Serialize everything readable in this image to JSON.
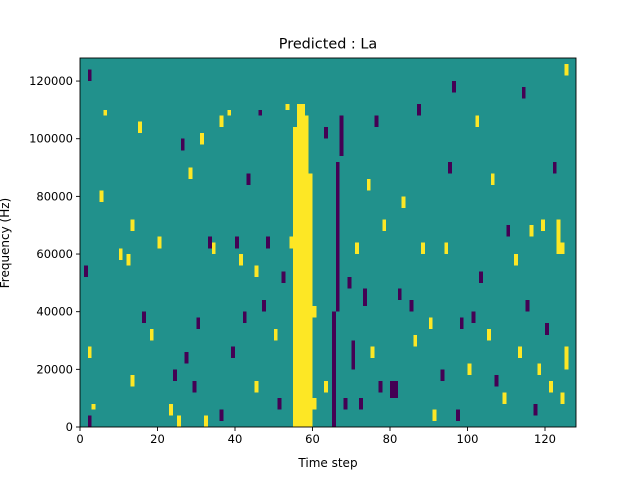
{
  "chart_data": {
    "type": "heatmap",
    "title": "Predicted : La",
    "xlabel": "Time step",
    "ylabel": "Frequency (Hz)",
    "xlim": [
      0,
      128
    ],
    "ylim": [
      0,
      128000
    ],
    "x_ticks": [
      0,
      20,
      40,
      60,
      80,
      100,
      120
    ],
    "x_tick_labels": [
      "0",
      "20",
      "40",
      "60",
      "80",
      "100",
      "120"
    ],
    "y_ticks": [
      0,
      20000,
      40000,
      60000,
      80000,
      100000,
      120000
    ],
    "y_tick_labels": [
      "0",
      "20000",
      "40000",
      "60000",
      "80000",
      "100000",
      "120000"
    ],
    "n_time_steps": 128,
    "n_frequency_bins": 64,
    "grid": false,
    "colormap": {
      "low": "#440154",
      "mid": "#21918c",
      "high": "#fde725"
    },
    "levels": [
      -1,
      0,
      1
    ],
    "background_level": 0,
    "cells": [
      {
        "t": 2,
        "f_start": 0,
        "f_end": 4000,
        "v": -1
      },
      {
        "t": 2,
        "f_start": 24000,
        "f_end": 28000,
        "v": 1
      },
      {
        "t": 1,
        "f_start": 52000,
        "f_end": 56000,
        "v": -1
      },
      {
        "t": 2,
        "f_start": 120000,
        "f_end": 124000,
        "v": -1
      },
      {
        "t": 3,
        "f_start": 6000,
        "f_end": 8000,
        "v": 1
      },
      {
        "t": 5,
        "f_start": 78000,
        "f_end": 82000,
        "v": 1
      },
      {
        "t": 6,
        "f_start": 108000,
        "f_end": 110000,
        "v": 1
      },
      {
        "t": 10,
        "f_start": 58000,
        "f_end": 62000,
        "v": 1
      },
      {
        "t": 12,
        "f_start": 56000,
        "f_end": 60000,
        "v": 1
      },
      {
        "t": 13,
        "f_start": 68000,
        "f_end": 72000,
        "v": 1
      },
      {
        "t": 13,
        "f_start": 14000,
        "f_end": 18000,
        "v": 1
      },
      {
        "t": 15,
        "f_start": 102000,
        "f_end": 106000,
        "v": 1
      },
      {
        "t": 16,
        "f_start": 36000,
        "f_end": 40000,
        "v": -1
      },
      {
        "t": 18,
        "f_start": 30000,
        "f_end": 34000,
        "v": 1
      },
      {
        "t": 20,
        "f_start": 62000,
        "f_end": 66000,
        "v": 1
      },
      {
        "t": 23,
        "f_start": 4000,
        "f_end": 8000,
        "v": 1
      },
      {
        "t": 24,
        "f_start": 16000,
        "f_end": 20000,
        "v": -1
      },
      {
        "t": 25,
        "f_start": 0,
        "f_end": 4000,
        "v": 1
      },
      {
        "t": 26,
        "f_start": 96000,
        "f_end": 100000,
        "v": -1
      },
      {
        "t": 27,
        "f_start": 22000,
        "f_end": 26000,
        "v": -1
      },
      {
        "t": 28,
        "f_start": 86000,
        "f_end": 90000,
        "v": 1
      },
      {
        "t": 29,
        "f_start": 12000,
        "f_end": 16000,
        "v": -1
      },
      {
        "t": 30,
        "f_start": 34000,
        "f_end": 38000,
        "v": -1
      },
      {
        "t": 31,
        "f_start": 98000,
        "f_end": 102000,
        "v": 1
      },
      {
        "t": 32,
        "f_start": 0,
        "f_end": 4000,
        "v": 1
      },
      {
        "t": 33,
        "f_start": 62000,
        "f_end": 66000,
        "v": -1
      },
      {
        "t": 34,
        "f_start": 60000,
        "f_end": 64000,
        "v": 1
      },
      {
        "t": 36,
        "f_start": 2000,
        "f_end": 6000,
        "v": -1
      },
      {
        "t": 36,
        "f_start": 104000,
        "f_end": 108000,
        "v": 1
      },
      {
        "t": 38,
        "f_start": 108000,
        "f_end": 110000,
        "v": 1
      },
      {
        "t": 39,
        "f_start": 24000,
        "f_end": 28000,
        "v": -1
      },
      {
        "t": 40,
        "f_start": 62000,
        "f_end": 66000,
        "v": -1
      },
      {
        "t": 41,
        "f_start": 56000,
        "f_end": 60000,
        "v": 1
      },
      {
        "t": 42,
        "f_start": 36000,
        "f_end": 40000,
        "v": -1
      },
      {
        "t": 43,
        "f_start": 84000,
        "f_end": 88000,
        "v": -1
      },
      {
        "t": 45,
        "f_start": 12000,
        "f_end": 16000,
        "v": 1
      },
      {
        "t": 45,
        "f_start": 52000,
        "f_end": 56000,
        "v": 1
      },
      {
        "t": 46,
        "f_start": 108000,
        "f_end": 110000,
        "v": -1
      },
      {
        "t": 47,
        "f_start": 40000,
        "f_end": 44000,
        "v": -1
      },
      {
        "t": 48,
        "f_start": 62000,
        "f_end": 66000,
        "v": -1
      },
      {
        "t": 50,
        "f_start": 30000,
        "f_end": 34000,
        "v": 1
      },
      {
        "t": 51,
        "f_start": 6000,
        "f_end": 10000,
        "v": -1
      },
      {
        "t": 52,
        "f_start": 50000,
        "f_end": 54000,
        "v": -1
      },
      {
        "t": 53,
        "f_start": 110000,
        "f_end": 112000,
        "v": 1
      },
      {
        "t": 54,
        "f_start": 62000,
        "f_end": 66000,
        "v": 1
      },
      {
        "t": 55,
        "f_start": 0,
        "f_end": 104000,
        "v": 1
      },
      {
        "t": 56,
        "f_start": 0,
        "f_end": 112000,
        "v": 1
      },
      {
        "t": 57,
        "f_start": 0,
        "f_end": 112000,
        "v": 1
      },
      {
        "t": 58,
        "f_start": 0,
        "f_end": 108000,
        "v": 1
      },
      {
        "t": 59,
        "f_start": 0,
        "f_end": 88000,
        "v": 1
      },
      {
        "t": 60,
        "f_start": 6000,
        "f_end": 10000,
        "v": 1
      },
      {
        "t": 60,
        "f_start": 38000,
        "f_end": 42000,
        "v": 1
      },
      {
        "t": 63,
        "f_start": 12000,
        "f_end": 16000,
        "v": 1
      },
      {
        "t": 63,
        "f_start": 100000,
        "f_end": 104000,
        "v": -1
      },
      {
        "t": 65,
        "f_start": 0,
        "f_end": 40000,
        "v": -1
      },
      {
        "t": 66,
        "f_start": 40000,
        "f_end": 92000,
        "v": -1
      },
      {
        "t": 67,
        "f_start": 94000,
        "f_end": 108000,
        "v": -1
      },
      {
        "t": 68,
        "f_start": 6000,
        "f_end": 10000,
        "v": -1
      },
      {
        "t": 69,
        "f_start": 48000,
        "f_end": 52000,
        "v": -1
      },
      {
        "t": 70,
        "f_start": 20000,
        "f_end": 30000,
        "v": -1
      },
      {
        "t": 71,
        "f_start": 60000,
        "f_end": 64000,
        "v": 1
      },
      {
        "t": 72,
        "f_start": 6000,
        "f_end": 10000,
        "v": -1
      },
      {
        "t": 73,
        "f_start": 42000,
        "f_end": 48000,
        "v": -1
      },
      {
        "t": 74,
        "f_start": 82000,
        "f_end": 86000,
        "v": 1
      },
      {
        "t": 75,
        "f_start": 24000,
        "f_end": 28000,
        "v": 1
      },
      {
        "t": 76,
        "f_start": 104000,
        "f_end": 108000,
        "v": -1
      },
      {
        "t": 77,
        "f_start": 12000,
        "f_end": 16000,
        "v": -1
      },
      {
        "t": 78,
        "f_start": 68000,
        "f_end": 72000,
        "v": 1
      },
      {
        "t": 80,
        "f_start": 10000,
        "f_end": 16000,
        "v": -1
      },
      {
        "t": 81,
        "f_start": 10000,
        "f_end": 16000,
        "v": -1
      },
      {
        "t": 82,
        "f_start": 44000,
        "f_end": 48000,
        "v": -1
      },
      {
        "t": 83,
        "f_start": 76000,
        "f_end": 80000,
        "v": 1
      },
      {
        "t": 85,
        "f_start": 40000,
        "f_end": 44000,
        "v": -1
      },
      {
        "t": 86,
        "f_start": 28000,
        "f_end": 32000,
        "v": 1
      },
      {
        "t": 87,
        "f_start": 108000,
        "f_end": 112000,
        "v": -1
      },
      {
        "t": 88,
        "f_start": 60000,
        "f_end": 64000,
        "v": 1
      },
      {
        "t": 90,
        "f_start": 34000,
        "f_end": 38000,
        "v": 1
      },
      {
        "t": 91,
        "f_start": 2000,
        "f_end": 6000,
        "v": 1
      },
      {
        "t": 93,
        "f_start": 16000,
        "f_end": 20000,
        "v": -1
      },
      {
        "t": 94,
        "f_start": 60000,
        "f_end": 64000,
        "v": 1
      },
      {
        "t": 95,
        "f_start": 88000,
        "f_end": 92000,
        "v": -1
      },
      {
        "t": 96,
        "f_start": 116000,
        "f_end": 120000,
        "v": -1
      },
      {
        "t": 97,
        "f_start": 2000,
        "f_end": 6000,
        "v": -1
      },
      {
        "t": 98,
        "f_start": 34000,
        "f_end": 38000,
        "v": -1
      },
      {
        "t": 100,
        "f_start": 18000,
        "f_end": 22000,
        "v": 1
      },
      {
        "t": 101,
        "f_start": 36000,
        "f_end": 40000,
        "v": -1
      },
      {
        "t": 102,
        "f_start": 104000,
        "f_end": 108000,
        "v": 1
      },
      {
        "t": 103,
        "f_start": 50000,
        "f_end": 54000,
        "v": -1
      },
      {
        "t": 105,
        "f_start": 30000,
        "f_end": 34000,
        "v": 1
      },
      {
        "t": 106,
        "f_start": 84000,
        "f_end": 88000,
        "v": 1
      },
      {
        "t": 107,
        "f_start": 14000,
        "f_end": 18000,
        "v": -1
      },
      {
        "t": 109,
        "f_start": 8000,
        "f_end": 12000,
        "v": 1
      },
      {
        "t": 110,
        "f_start": 66000,
        "f_end": 70000,
        "v": -1
      },
      {
        "t": 112,
        "f_start": 56000,
        "f_end": 60000,
        "v": 1
      },
      {
        "t": 113,
        "f_start": 24000,
        "f_end": 28000,
        "v": 1
      },
      {
        "t": 114,
        "f_start": 114000,
        "f_end": 118000,
        "v": -1
      },
      {
        "t": 115,
        "f_start": 40000,
        "f_end": 44000,
        "v": -1
      },
      {
        "t": 116,
        "f_start": 66000,
        "f_end": 70000,
        "v": 1
      },
      {
        "t": 117,
        "f_start": 4000,
        "f_end": 8000,
        "v": -1
      },
      {
        "t": 118,
        "f_start": 18000,
        "f_end": 22000,
        "v": 1
      },
      {
        "t": 119,
        "f_start": 68000,
        "f_end": 72000,
        "v": 1
      },
      {
        "t": 120,
        "f_start": 32000,
        "f_end": 36000,
        "v": -1
      },
      {
        "t": 121,
        "f_start": 12000,
        "f_end": 16000,
        "v": 1
      },
      {
        "t": 122,
        "f_start": 88000,
        "f_end": 92000,
        "v": -1
      },
      {
        "t": 123,
        "f_start": 60000,
        "f_end": 72000,
        "v": 1
      },
      {
        "t": 124,
        "f_start": 60000,
        "f_end": 64000,
        "v": 1
      },
      {
        "t": 124,
        "f_start": 8000,
        "f_end": 12000,
        "v": 1
      },
      {
        "t": 125,
        "f_start": 20000,
        "f_end": 28000,
        "v": 1
      },
      {
        "t": 125,
        "f_start": 122000,
        "f_end": 126000,
        "v": 1
      }
    ]
  }
}
